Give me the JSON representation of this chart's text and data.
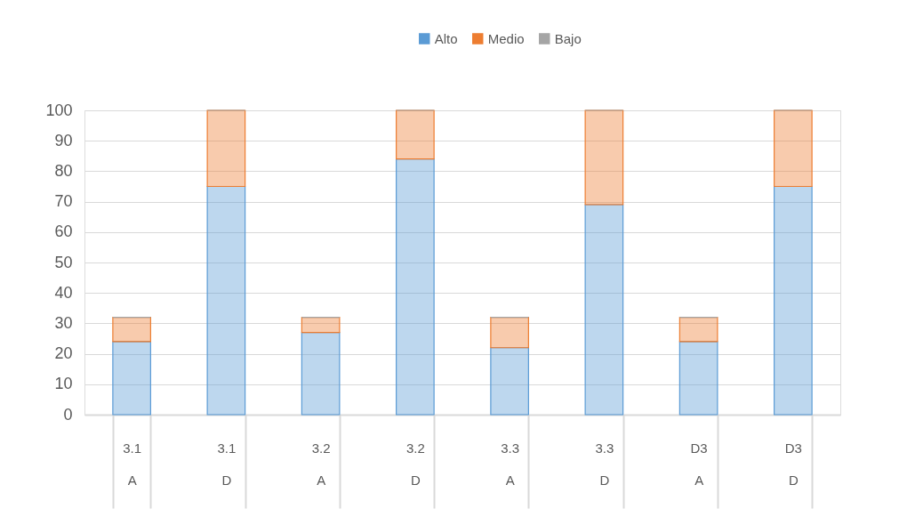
{
  "chart_data": {
    "type": "bar",
    "stacked": true,
    "categories": [
      "3.1\nA",
      "3.1\nD",
      "3.2\nA",
      "3.2\nD",
      "3.3\nA",
      "3.3\nD",
      "D3\nA",
      "D3\nD"
    ],
    "series": [
      {
        "name": "Alto",
        "color": "#5b9bd5",
        "values": [
          24,
          75,
          27,
          84,
          22,
          69,
          24,
          75
        ]
      },
      {
        "name": "Medio",
        "color": "#ed7d31",
        "values": [
          8,
          25,
          5,
          16,
          10,
          31,
          8,
          25
        ]
      },
      {
        "name": "Bajo",
        "color": "#a5a5a5",
        "values": [
          0,
          0,
          0,
          0,
          0,
          0,
          0,
          0
        ]
      }
    ],
    "ylim": [
      0,
      100
    ],
    "yticks": [
      0,
      10,
      20,
      30,
      40,
      50,
      60,
      70,
      80,
      90,
      100
    ],
    "grid": "y",
    "legend": "top"
  }
}
